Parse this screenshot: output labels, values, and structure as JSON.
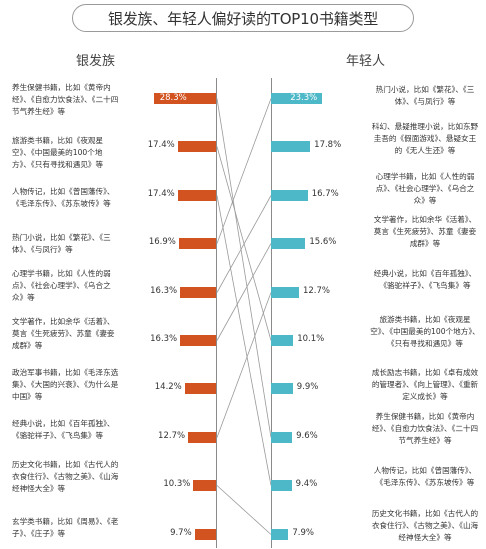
{
  "chart_data": {
    "type": "bar",
    "title": "银发族、年轻人偏好读的TOP10书籍类型",
    "left": {
      "name": "银发族",
      "color": "#d2531f",
      "items": [
        {
          "label": "养生保健书籍，比如《黄帝内经》、《自愈力饮食法》、《二十四节气养生经》等",
          "value": 28.3,
          "value_text": "28.3%"
        },
        {
          "label": "旅游类书籍，比如《夜观星空》、《中国最美的100个地方》、《只有寻找和遇见》等",
          "value": 17.4,
          "value_text": "17.4%"
        },
        {
          "label": "人物传记，比如《曾国藩传》、《毛泽东传》、《苏东坡传》等",
          "value": 17.4,
          "value_text": "17.4%"
        },
        {
          "label": "热门小说，比如《繁花》、《三体》、《与凤行》等",
          "value": 16.9,
          "value_text": "16.9%"
        },
        {
          "label": "心理学书籍，比如《人性的弱点》、《社会心理学》、《乌合之众》等",
          "value": 16.3,
          "value_text": "16.3%"
        },
        {
          "label": "文学著作，比如余华《活着》、莫言《生死疲劳》、苏童《妻妾成群》等",
          "value": 16.3,
          "value_text": "16.3%"
        },
        {
          "label": "政治军事书籍，比如《毛泽东选集》、《大国的兴衰》、《为什么是中国》等",
          "value": 14.2,
          "value_text": "14.2%"
        },
        {
          "label": "经典小说，比如《百年孤独》、《骆驼祥子》、《飞鸟集》等",
          "value": 12.7,
          "value_text": "12.7%"
        },
        {
          "label": "历史文化书籍，比如《古代人的衣食住行》、《古物之美》、《山海经神怪大全》等",
          "value": 10.3,
          "value_text": "10.3%"
        },
        {
          "label": "玄学类书籍，比如《周易》、《老子》、《庄子》等",
          "value": 9.7,
          "value_text": "9.7%"
        }
      ]
    },
    "right": {
      "name": "年轻人",
      "color": "#4db8c8",
      "items": [
        {
          "label": "热门小说，比如《繁花》、《三体》、《与凤行》等",
          "value": 23.3,
          "value_text": "23.3%"
        },
        {
          "label": "科幻、悬疑推理小说，比如东野圭吾的《假面游戏》、悬疑女王的《无人生还》等",
          "value": 17.8,
          "value_text": "17.8%"
        },
        {
          "label": "心理学书籍，比如《人性的弱点》、《社会心理学》、《乌合之众》等",
          "value": 16.7,
          "value_text": "16.7%"
        },
        {
          "label": "文学著作，比如余华《活着》、莫言《生死疲劳》、苏童《妻妾成群》等",
          "value": 15.6,
          "value_text": "15.6%"
        },
        {
          "label": "经典小说，比如《百年孤独》、《骆驼祥子》、《飞鸟集》等",
          "value": 12.7,
          "value_text": "12.7%"
        },
        {
          "label": "旅游类书籍，比如《夜观星空》、《中国最美的100个地方》、《只有寻找和遇见》等",
          "value": 10.1,
          "value_text": "10.1%"
        },
        {
          "label": "成长励志书籍，比如《卓有成效的管理者》、《向上管理》、《重新定义成长》等",
          "value": 9.9,
          "value_text": "9.9%"
        },
        {
          "label": "养生保健书籍，比如《黄帝内经》、《自愈力饮食法》、《二十四节气养生经》等",
          "value": 9.6,
          "value_text": "9.6%"
        },
        {
          "label": "人物传记，比如《曾国藩传》、《毛泽东传》、《苏东坡传》等",
          "value": 9.4,
          "value_text": "9.4%"
        },
        {
          "label": "历史文化书籍，比如《古代人的衣食住行》、《古物之美》、《山海经神怪大全》等",
          "value": 7.9,
          "value_text": "7.9%"
        }
      ]
    },
    "links": [
      [
        0,
        7
      ],
      [
        1,
        5
      ],
      [
        2,
        8
      ],
      [
        3,
        0
      ],
      [
        4,
        2
      ],
      [
        5,
        3
      ],
      [
        7,
        4
      ],
      [
        8,
        9
      ]
    ],
    "link_color": "#9a9a9a"
  }
}
